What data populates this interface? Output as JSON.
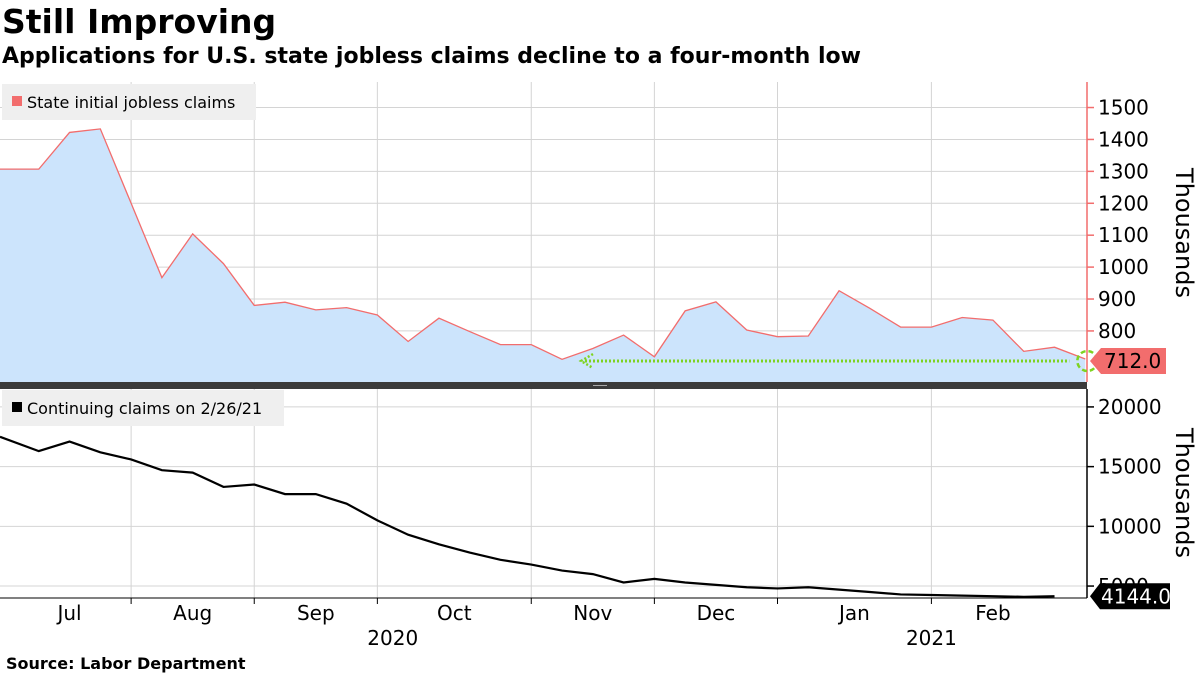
{
  "title": "Still Improving",
  "subtitle": "Applications for U.S. state jobless claims decline to a four-month low",
  "source": "Source: Labor Department",
  "colors": {
    "initial_fill": "#cce4fc",
    "initial_line": "#f26d6d",
    "initial_legend": "#f26d6d",
    "continuing_line": "#000000",
    "highlight": "#7ed321",
    "grid": "#d4d4d4"
  },
  "chart_data": [
    {
      "type": "area",
      "title": "State initial jobless claims",
      "legend": "State initial jobless claims",
      "ylabel": "Thousands",
      "ylim": [
        640,
        1580
      ],
      "yticks": [
        800,
        900,
        1000,
        1100,
        1200,
        1300,
        1400,
        1500
      ],
      "ytick_labels": [
        "800",
        "900",
        "1000",
        "1100",
        "1200",
        "1300",
        "1400",
        "1500"
      ],
      "last_value_label": "712.0",
      "annotation": "dotted arrow marking four-month low at 712.0",
      "x": [
        0,
        1,
        2,
        3,
        4,
        5,
        6,
        7,
        8,
        9,
        10,
        11,
        12,
        13,
        14,
        15,
        16,
        17,
        18,
        19,
        20,
        21,
        22,
        23,
        24,
        25,
        26,
        27,
        28,
        29,
        30,
        31,
        32,
        33,
        34,
        35
      ],
      "values": [
        1307,
        1307,
        1422,
        1433,
        1200,
        967,
        1104,
        1011,
        880,
        890,
        866,
        873,
        850,
        767,
        840,
        798,
        757,
        757,
        711,
        745,
        787,
        719,
        863,
        891,
        803,
        782,
        784,
        926,
        871,
        812,
        812,
        842,
        834,
        736,
        749,
        712
      ]
    },
    {
      "type": "line",
      "title": "Continuing claims on 2/26/21",
      "legend": "Continuing claims on 2/26/21",
      "ylabel": "Thousands",
      "ylim": [
        4000,
        21500
      ],
      "yticks": [
        5000,
        10000,
        15000,
        20000
      ],
      "ytick_labels": [
        "5000",
        "10000",
        "15000",
        "20000"
      ],
      "last_value_label": "4144.0",
      "x": [
        0,
        1,
        2,
        3,
        4,
        5,
        6,
        7,
        8,
        9,
        10,
        11,
        12,
        13,
        14,
        15,
        16,
        17,
        18,
        19,
        20,
        21,
        22,
        23,
        24,
        25,
        26,
        27,
        28,
        29,
        30,
        31,
        32,
        33,
        34
      ],
      "values": [
        17500,
        16300,
        17100,
        16200,
        15600,
        14700,
        14500,
        13300,
        13500,
        12700,
        12700,
        11900,
        10500,
        9300,
        8500,
        7800,
        7200,
        6800,
        6300,
        6000,
        5300,
        5600,
        5300,
        5100,
        4900,
        4800,
        4900,
        4700,
        4500,
        4300,
        4250,
        4200,
        4150,
        4100,
        4144
      ]
    }
  ],
  "x_axis": {
    "months": [
      {
        "label": "Jul",
        "week": 2
      },
      {
        "label": "Aug",
        "week": 6
      },
      {
        "label": "Sep",
        "week": 10
      },
      {
        "label": "Oct",
        "week": 14.5
      },
      {
        "label": "Nov",
        "week": 19
      },
      {
        "label": "Dec",
        "week": 23
      },
      {
        "label": "Jan",
        "week": 27.5
      },
      {
        "label": "Feb",
        "week": 32
      }
    ],
    "years": [
      {
        "label": "2020",
        "week": 12.5
      },
      {
        "label": "2021",
        "week": 30
      }
    ],
    "gridlines": [
      4,
      8,
      12,
      17,
      21,
      25,
      30
    ]
  }
}
